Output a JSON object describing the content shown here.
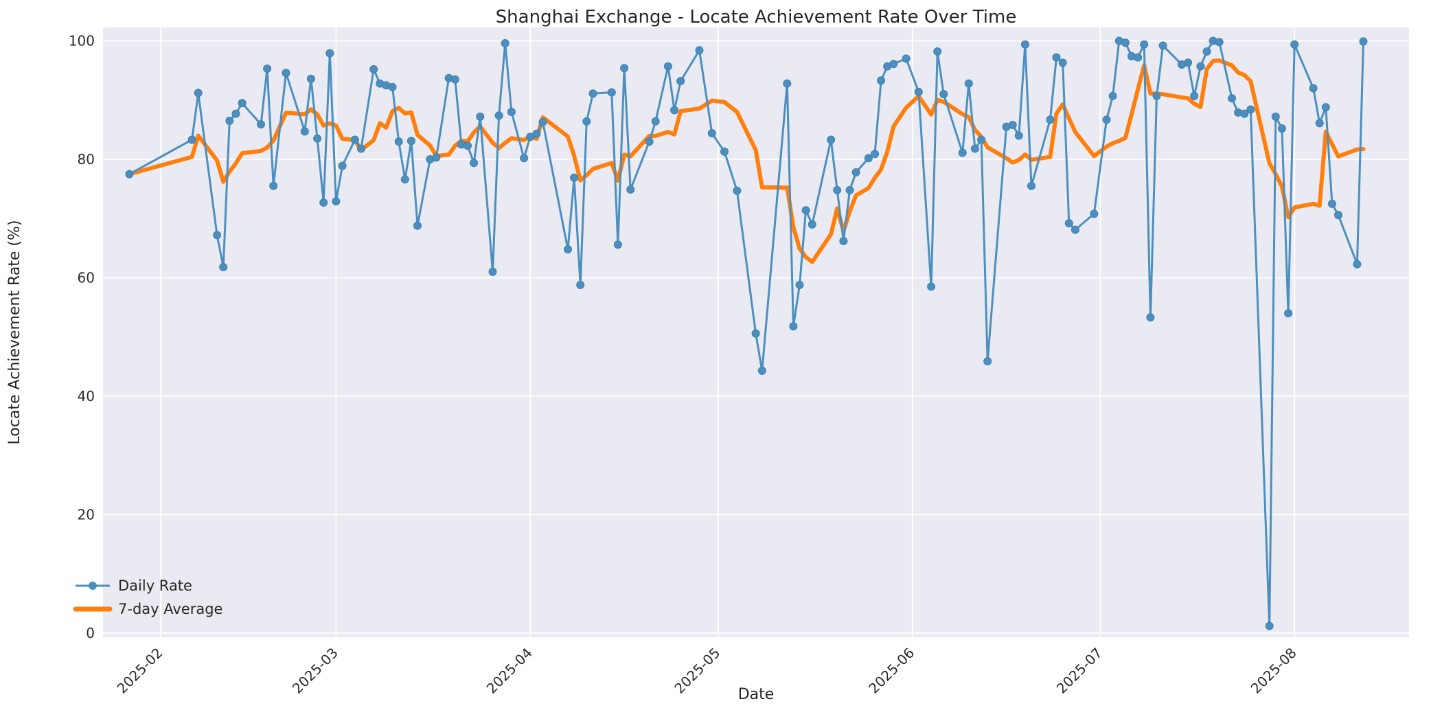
{
  "chart_data": {
    "type": "line",
    "title": "Shanghai Exchange - Locate Achievement Rate Over Time",
    "xlabel": "Date",
    "ylabel": "Locate Achievement Rate (%)",
    "ylim": [
      0,
      100
    ],
    "y_ticks": [
      "0",
      "20",
      "40",
      "60",
      "80",
      "100"
    ],
    "x_ticks": [
      "2025-02",
      "2025-03",
      "2025-04",
      "2025-05",
      "2025-06",
      "2025-07",
      "2025-08"
    ],
    "grid": true,
    "legend_position": "lower-left",
    "colors": {
      "axes_background": "#eaeaf2",
      "gridline": "#ffffff",
      "daily_rate": "#4c8fbe",
      "seven_day_average": "#ff7f0e",
      "text": "#262626"
    },
    "series": [
      {
        "name": "Daily Rate",
        "color": "#4c8fbe",
        "marker": "circle",
        "dates": [
          "2025-01-27",
          "2025-02-06",
          "2025-02-07",
          "2025-02-10",
          "2025-02-11",
          "2025-02-12",
          "2025-02-13",
          "2025-02-14",
          "2025-02-17",
          "2025-02-18",
          "2025-02-19",
          "2025-02-21",
          "2025-02-24",
          "2025-02-25",
          "2025-02-26",
          "2025-02-27",
          "2025-02-28",
          "2025-03-01",
          "2025-03-02",
          "2025-03-04",
          "2025-03-05",
          "2025-03-07",
          "2025-03-08",
          "2025-03-09",
          "2025-03-10",
          "2025-03-11",
          "2025-03-12",
          "2025-03-13",
          "2025-03-14",
          "2025-03-16",
          "2025-03-17",
          "2025-03-19",
          "2025-03-20",
          "2025-03-21",
          "2025-03-22",
          "2025-03-23",
          "2025-03-24",
          "2025-03-26",
          "2025-03-27",
          "2025-03-28",
          "2025-03-29",
          "2025-03-31",
          "2025-04-01",
          "2025-04-02",
          "2025-04-03",
          "2025-04-07",
          "2025-04-08",
          "2025-04-09",
          "2025-04-10",
          "2025-04-11",
          "2025-04-14",
          "2025-04-15",
          "2025-04-16",
          "2025-04-17",
          "2025-04-20",
          "2025-04-21",
          "2025-04-23",
          "2025-04-24",
          "2025-04-25",
          "2025-04-28",
          "2025-04-30",
          "2025-05-02",
          "2025-05-04",
          "2025-05-07",
          "2025-05-08",
          "2025-05-12",
          "2025-05-13",
          "2025-05-14",
          "2025-05-15",
          "2025-05-16",
          "2025-05-19",
          "2025-05-20",
          "2025-05-21",
          "2025-05-22",
          "2025-05-23",
          "2025-05-25",
          "2025-05-26",
          "2025-05-27",
          "2025-05-28",
          "2025-05-29",
          "2025-05-31",
          "2025-06-02",
          "2025-06-04",
          "2025-06-05",
          "2025-06-06",
          "2025-06-09",
          "2025-06-10",
          "2025-06-11",
          "2025-06-12",
          "2025-06-13",
          "2025-06-16",
          "2025-06-17",
          "2025-06-18",
          "2025-06-19",
          "2025-06-20",
          "2025-06-23",
          "2025-06-24",
          "2025-06-25",
          "2025-06-26",
          "2025-06-27",
          "2025-06-30",
          "2025-07-02",
          "2025-07-03",
          "2025-07-04",
          "2025-07-05",
          "2025-07-06",
          "2025-07-07",
          "2025-07-08",
          "2025-07-09",
          "2025-07-10",
          "2025-07-11",
          "2025-07-14",
          "2025-07-15",
          "2025-07-16",
          "2025-07-17",
          "2025-07-18",
          "2025-07-19",
          "2025-07-20",
          "2025-07-22",
          "2025-07-23",
          "2025-07-24",
          "2025-07-25",
          "2025-07-28",
          "2025-07-29",
          "2025-07-30",
          "2025-07-31",
          "2025-08-01",
          "2025-08-04",
          "2025-08-05",
          "2025-08-06",
          "2025-08-07",
          "2025-08-08",
          "2025-08-11",
          "2025-08-12"
        ],
        "values": [
          77.5,
          83.3,
          91.2,
          67.2,
          61.8,
          86.5,
          87.7,
          89.5,
          85.9,
          95.3,
          75.5,
          94.6,
          84.7,
          93.6,
          83.5,
          72.7,
          97.9,
          72.9,
          78.9,
          83.3,
          81.8,
          95.2,
          92.8,
          92.5,
          92.2,
          83.0,
          76.6,
          83.1,
          68.8,
          80.0,
          80.3,
          93.7,
          93.5,
          82.5,
          82.3,
          79.4,
          87.2,
          61.0,
          87.4,
          99.6,
          88.0,
          80.2,
          83.8,
          84.3,
          86.3,
          64.8,
          76.9,
          58.8,
          86.4,
          91.1,
          91.3,
          65.6,
          95.4,
          74.9,
          83.0,
          86.4,
          95.7,
          88.3,
          93.2,
          98.4,
          84.4,
          81.3,
          74.7,
          50.6,
          44.3,
          92.8,
          51.8,
          58.8,
          71.4,
          69.0,
          83.3,
          74.8,
          66.2,
          74.8,
          77.8,
          80.2,
          80.9,
          93.3,
          95.7,
          96.1,
          97.0,
          91.4,
          58.5,
          98.2,
          91.0,
          81.1,
          92.8,
          81.8,
          83.3,
          45.9,
          85.5,
          85.8,
          84.0,
          99.4,
          75.5,
          86.7,
          97.2,
          96.3,
          69.2,
          68.1,
          70.8,
          86.7,
          90.7,
          100.0,
          99.7,
          97.4,
          97.2,
          99.4,
          53.3,
          90.7,
          99.2,
          96.0,
          96.3,
          90.7,
          95.7,
          98.2,
          100.0,
          99.8,
          90.3,
          87.9,
          87.7,
          88.4,
          1.2,
          87.2,
          85.2,
          54.0,
          99.4,
          92.0,
          86.1,
          88.8,
          72.5,
          70.6,
          62.3,
          99.9
        ]
      },
      {
        "name": "7-day Average",
        "color": "#ff7f0e",
        "derived": "rolling mean of Daily Rate over the last 7 observations (min_periods=1)"
      }
    ]
  }
}
